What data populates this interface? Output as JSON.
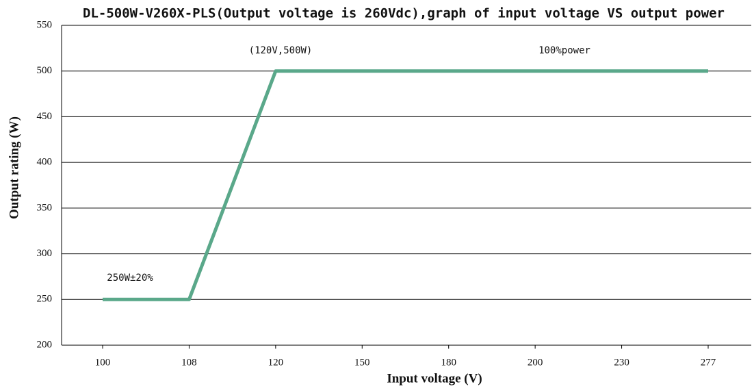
{
  "chart_data": {
    "type": "line",
    "title": "DL-500W-V260X-PLS(Output voltage is 260Vdc),graph of input voltage VS output power",
    "xlabel": "Input voltage (V)",
    "ylabel": "Output rating (W)",
    "annotations": [
      "(120V,500W)",
      "100%power",
      "250W±20%"
    ],
    "categories": [
      "100",
      "108",
      "120",
      "150",
      "180",
      "200",
      "230",
      "277"
    ],
    "series": [
      {
        "name": "Output power",
        "color": "#5aa88a",
        "values": [
          250,
          250,
          500,
          500,
          500,
          500,
          500,
          500
        ]
      }
    ],
    "ylim": [
      200,
      550
    ],
    "yticks": [
      200,
      250,
      300,
      350,
      400,
      450,
      500,
      550
    ],
    "grid": true
  }
}
